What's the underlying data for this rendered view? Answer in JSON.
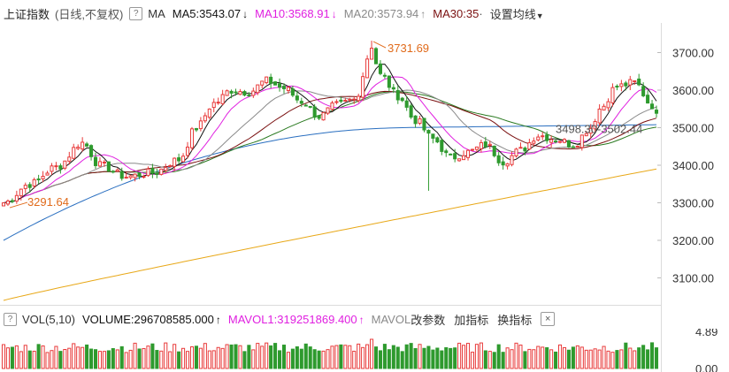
{
  "header": {
    "title": "上证指数",
    "period": "(日线,不复权)",
    "ma_label": "MA",
    "ma5": "MA5:3543.07",
    "ma10": "MA10:3568.91",
    "ma20": "MA20:3573.94",
    "ma30": "MA30:35",
    "settings": "设置均线",
    "colors": {
      "ma5": "#111111",
      "ma10": "#e020e0",
      "ma20": "#8a8a8a",
      "ma30": "#7a1010"
    }
  },
  "annotations": {
    "high": "3731.69",
    "low": "3291.64",
    "marker": "3498.30-3502.44"
  },
  "vol_header": {
    "title": "VOL(5,10)",
    "volume": "VOLUME:296708585.000",
    "mavol1": "MAVOL1:319251869.400",
    "mavol2_prefix": "MAVOL",
    "change_params": "改参数",
    "add_indicator": "加指标",
    "switch_indicator": "换指标",
    "close": "×"
  },
  "chart_data": {
    "type": "candlestick",
    "y_ticks": [
      "3700.00",
      "3600.00",
      "3500.00",
      "3400.00",
      "3300.00",
      "3200.00",
      "3100.00"
    ],
    "ylim": [
      3040,
      3760
    ],
    "vol_ticks": [
      "4.89",
      "0.00"
    ],
    "volume_ylim": [
      0,
      4.89
    ],
    "up_color": "#e83a3a",
    "down_color": "#2e9a2e",
    "series": [
      {
        "name": "MA5",
        "color": "#111111"
      },
      {
        "name": "MA10",
        "color": "#e020e0"
      },
      {
        "name": "MA20",
        "color": "#8a8a8a"
      },
      {
        "name": "MA30",
        "color": "#7a1010"
      },
      {
        "name": "",
        "color": "#2a7a20"
      },
      {
        "name": "",
        "color": "#2a6fc0"
      },
      {
        "name": "",
        "color": "#e8a818"
      }
    ],
    "anchors": {
      "high": {
        "index": 84,
        "value": 3731.69
      },
      "low": {
        "index": 1,
        "value": 3291.64
      }
    }
  }
}
